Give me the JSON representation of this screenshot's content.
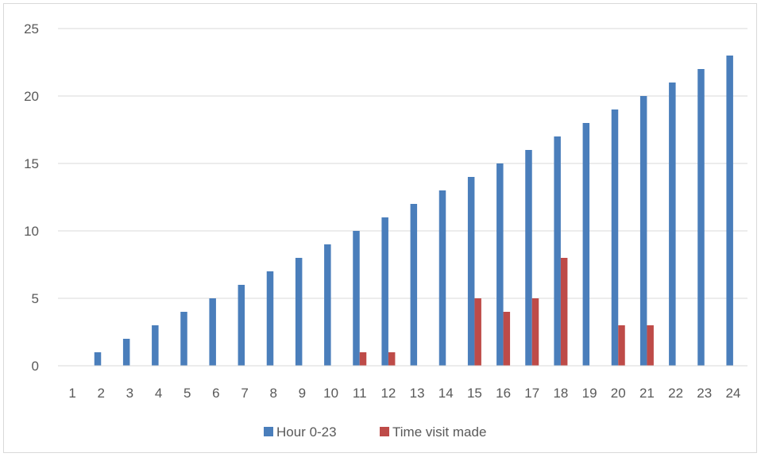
{
  "chart_data": {
    "type": "bar",
    "title": "",
    "xlabel": "",
    "ylabel": "",
    "categories": [
      "1",
      "2",
      "3",
      "4",
      "5",
      "6",
      "7",
      "8",
      "9",
      "10",
      "11",
      "12",
      "13",
      "14",
      "15",
      "16",
      "17",
      "18",
      "19",
      "20",
      "21",
      "22",
      "23",
      "24"
    ],
    "series": [
      {
        "name": "Hour 0-23",
        "color": "#4a7ebb",
        "values": [
          0,
          1,
          2,
          3,
          4,
          5,
          6,
          7,
          8,
          9,
          10,
          11,
          12,
          13,
          14,
          15,
          16,
          17,
          18,
          19,
          20,
          21,
          22,
          23
        ]
      },
      {
        "name": "Time visit made",
        "color": "#be4b48",
        "values": [
          0,
          0,
          0,
          0,
          0,
          0,
          0,
          0,
          0,
          0,
          1,
          1,
          0,
          0,
          5,
          4,
          5,
          8,
          0,
          3,
          3,
          0,
          0,
          0
        ]
      }
    ],
    "ylim": [
      0,
      25
    ],
    "yticks": [
      0,
      5,
      10,
      15,
      20,
      25
    ],
    "grid": true,
    "legend": "bottom"
  }
}
